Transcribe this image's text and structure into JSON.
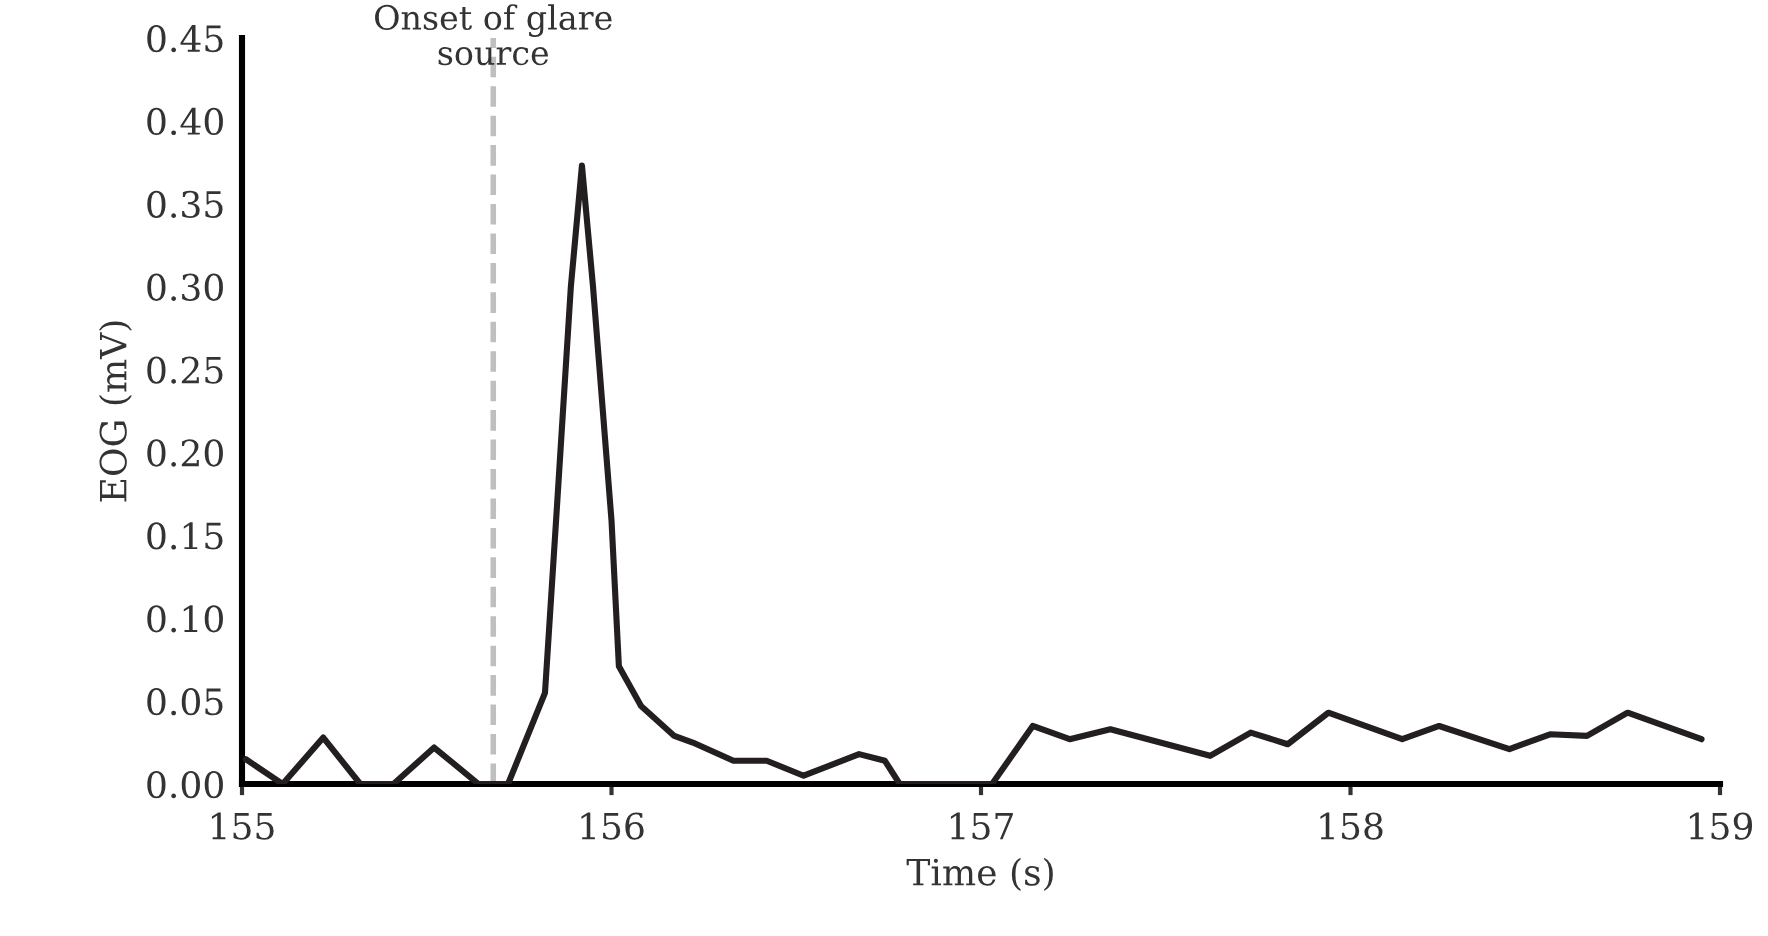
{
  "chart_data": {
    "type": "line",
    "xlabel": "Time (s)",
    "ylabel": "EOG (mV)",
    "x": [
      155.01,
      155.11,
      155.22,
      155.32,
      155.41,
      155.52,
      155.64,
      155.72,
      155.82,
      155.85,
      155.89,
      155.92,
      155.95,
      156.0,
      156.02,
      156.08,
      156.17,
      156.22,
      156.33,
      156.42,
      156.52,
      156.67,
      156.74,
      156.78,
      157.03,
      157.14,
      157.24,
      157.35,
      157.62,
      157.73,
      157.83,
      157.94,
      158.14,
      158.24,
      158.43,
      158.54,
      158.64,
      158.75,
      158.95
    ],
    "series": [
      {
        "color": "#231f20",
        "values": [
          0.015,
          0,
          0.028,
          0,
          0,
          0.022,
          0,
          0,
          0.055,
          0.159,
          0.3,
          0.373,
          0.3,
          0.159,
          0.071,
          0.047,
          0.029,
          0.025,
          0.014,
          0.014,
          0.005,
          0.018,
          0.014,
          0,
          0,
          0.035,
          0.027,
          0.033,
          0.017,
          0.031,
          0.024,
          0.043,
          0.027,
          0.035,
          0.021,
          0.03,
          0.029,
          0.043,
          0.027
        ]
      }
    ],
    "xlim": [
      155,
      159
    ],
    "xticks": [
      155,
      156,
      157,
      158,
      159
    ],
    "ylim": [
      0,
      0.45
    ],
    "yticks": [
      {
        "value": 0,
        "label": "0.00"
      },
      {
        "value": 0.05,
        "label": "0.05"
      },
      {
        "value": 0.1,
        "label": "0.10"
      },
      {
        "value": 0.15,
        "label": "0.15"
      },
      {
        "value": 0.2,
        "label": "0.20"
      },
      {
        "value": 0.25,
        "label": "0.25"
      },
      {
        "value": 0.3,
        "label": "0.30"
      },
      {
        "value": 0.35,
        "label": "0.35"
      },
      {
        "value": 0.4,
        "label": "0.40"
      },
      {
        "value": 0.45,
        "label": "0.45"
      }
    ],
    "ref_lines": [
      {
        "axis": "x",
        "value": 155.68,
        "label": "Onset of glare\nsource",
        "color": "#bfbfbf",
        "line_style": "dashed"
      }
    ],
    "grid": false,
    "legend": false,
    "marker": "none",
    "line_style": "solid"
  }
}
